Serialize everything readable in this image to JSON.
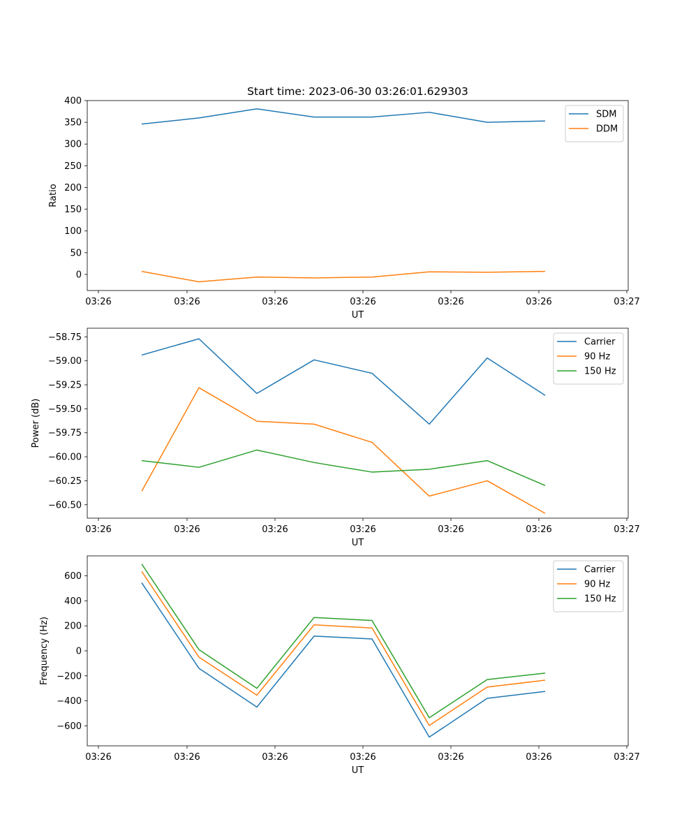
{
  "title": "Start time: 2023-06-30 03:26:01.629303",
  "chart_data": [
    {
      "type": "line",
      "xlabel": "UT",
      "ylabel": "Ratio",
      "x_tick_labels": [
        "03:26",
        "03:26",
        "03:26",
        "03:26",
        "03:26",
        "03:26",
        "03:27"
      ],
      "y_ticks": [
        0,
        50,
        100,
        150,
        200,
        250,
        300,
        350,
        400
      ],
      "ylim": [
        -37,
        400
      ],
      "legend_position": "upper right",
      "series": [
        {
          "name": "SDM",
          "color": "#1f77b4",
          "values": [
            346,
            360,
            381,
            362,
            362,
            373,
            350,
            353
          ]
        },
        {
          "name": "DDM",
          "color": "#ff7f0e",
          "values": [
            7,
            -17,
            -6,
            -8,
            -6,
            6,
            5,
            7
          ]
        }
      ]
    },
    {
      "type": "line",
      "xlabel": "UT",
      "ylabel": "Power (dB)",
      "x_tick_labels": [
        "03:26",
        "03:26",
        "03:26",
        "03:26",
        "03:26",
        "03:26",
        "03:27"
      ],
      "y_ticks": [
        -60.5,
        -60.25,
        -60.0,
        -59.75,
        -59.5,
        -59.25,
        -59.0,
        -58.75
      ],
      "y_tick_labels": [
        "−60.50",
        "−60.25",
        "−60.00",
        "−59.75",
        "−59.50",
        "−59.25",
        "−59.00",
        "−58.75"
      ],
      "ylim": [
        -60.64,
        -58.66
      ],
      "legend_position": "upper right",
      "series": [
        {
          "name": "Carrier",
          "color": "#1f77b4",
          "values": [
            -58.94,
            -58.77,
            -59.34,
            -58.99,
            -59.13,
            -59.66,
            -58.97,
            -59.36
          ]
        },
        {
          "name": "90 Hz",
          "color": "#ff7f0e",
          "values": [
            -60.36,
            -59.28,
            -59.63,
            -59.66,
            -59.85,
            -60.41,
            -60.25,
            -60.59
          ]
        },
        {
          "name": "150 Hz",
          "color": "#2ca02c",
          "values": [
            -60.04,
            -60.11,
            -59.93,
            -60.06,
            -60.16,
            -60.13,
            -60.04,
            -60.3
          ]
        }
      ]
    },
    {
      "type": "line",
      "xlabel": "UT",
      "ylabel": "Frequency (Hz)",
      "x_tick_labels": [
        "03:26",
        "03:26",
        "03:26",
        "03:26",
        "03:26",
        "03:26",
        "03:27"
      ],
      "y_ticks": [
        -600,
        -400,
        -200,
        0,
        200,
        400,
        600
      ],
      "y_tick_labels": [
        "−600",
        "−400",
        "−200",
        "0",
        "200",
        "400",
        "600"
      ],
      "ylim": [
        -760,
        760
      ],
      "legend_position": "upper right",
      "series": [
        {
          "name": "Carrier",
          "color": "#1f77b4",
          "values": [
            545,
            -140,
            -450,
            118,
            95,
            -690,
            -380,
            -325
          ]
        },
        {
          "name": "90 Hz",
          "color": "#ff7f0e",
          "values": [
            635,
            -50,
            -355,
            208,
            183,
            -597,
            -290,
            -235
          ]
        },
        {
          "name": "150 Hz",
          "color": "#2ca02c",
          "values": [
            695,
            10,
            -300,
            267,
            243,
            -535,
            -230,
            -178
          ]
        }
      ]
    }
  ]
}
